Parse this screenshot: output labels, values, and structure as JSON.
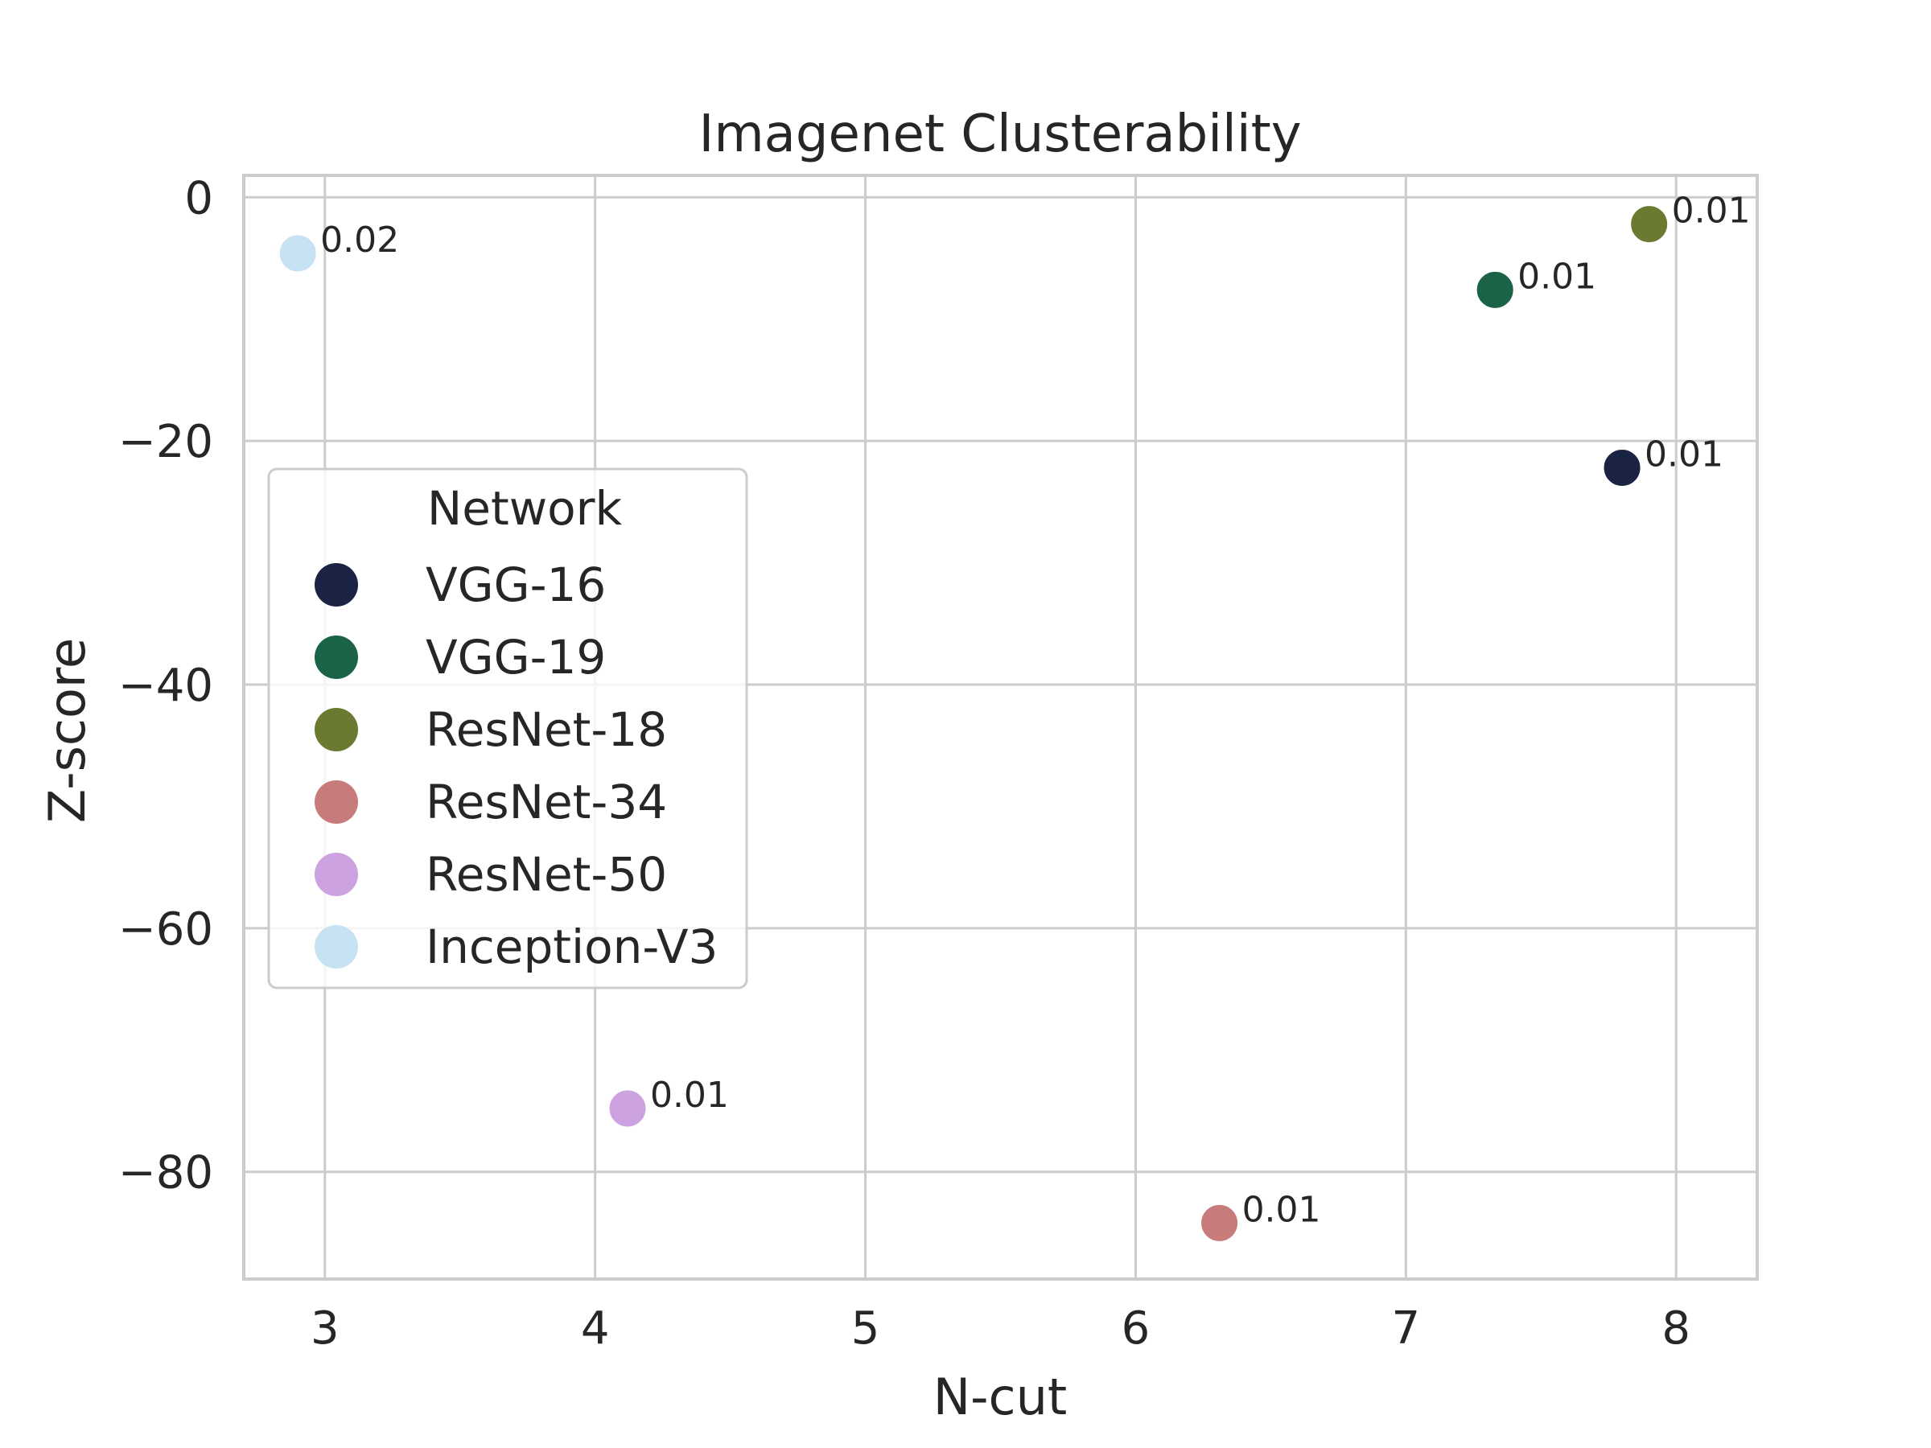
{
  "chart_data": {
    "type": "scatter",
    "title": "Imagenet Clusterability",
    "xlabel": "N-cut",
    "ylabel": "Z-score",
    "xlim": [
      2.7,
      8.3
    ],
    "ylim": [
      -88.8,
      1.8
    ],
    "xticks": [
      3,
      4,
      5,
      6,
      7,
      8
    ],
    "yticks": [
      0,
      -20,
      -40,
      -60,
      -80
    ],
    "xtick_labels": [
      "3",
      "4",
      "5",
      "6",
      "7",
      "8"
    ],
    "ytick_labels": [
      "0",
      "−20",
      "−40",
      "−60",
      "−80"
    ],
    "grid": true,
    "legend": {
      "title": "Network",
      "placement": "center-left"
    },
    "series": [
      {
        "name": "VGG-16",
        "color": "#1b2344",
        "x": 7.8,
        "y": -22.2,
        "label": "0.01"
      },
      {
        "name": "VGG-19",
        "color": "#1b6347",
        "x": 7.33,
        "y": -7.6,
        "label": "0.01"
      },
      {
        "name": "ResNet-18",
        "color": "#6a7a30",
        "x": 7.9,
        "y": -2.2,
        "label": "0.01"
      },
      {
        "name": "ResNet-34",
        "color": "#c87b7b",
        "x": 6.31,
        "y": -84.2,
        "label": "0.01"
      },
      {
        "name": "ResNet-50",
        "color": "#cda2e0",
        "x": 4.12,
        "y": -74.8,
        "label": "0.01"
      },
      {
        "name": "Inception-V3",
        "color": "#c6e2f3",
        "x": 2.9,
        "y": -4.6,
        "label": "0.02"
      }
    ]
  }
}
